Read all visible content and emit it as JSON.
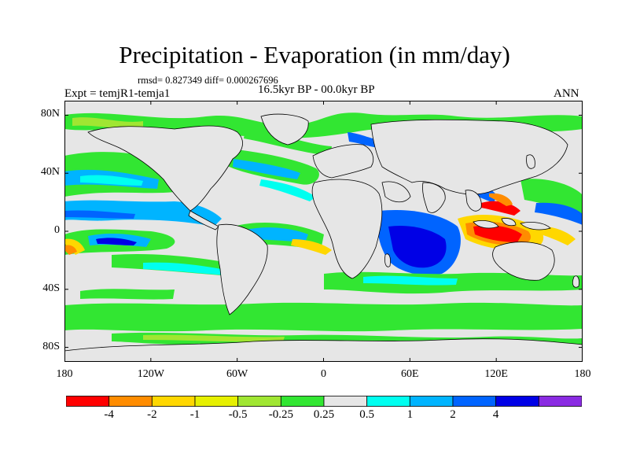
{
  "title": "Precipitation - Evaporation (in mm/day)",
  "stats": "rmsd= 0.827349 diff= 0.000267696",
  "experiment": "Expt = temjR1-temja1",
  "period": "16.5kyr BP - 00.0kyr BP",
  "season": "ANN",
  "lat_ticks": [
    {
      "label": "80N",
      "lat": 80
    },
    {
      "label": "40N",
      "lat": 40
    },
    {
      "label": "0",
      "lat": 0
    },
    {
      "label": "40S",
      "lat": -40
    },
    {
      "label": "80S",
      "lat": -80
    }
  ],
  "lon_ticks": [
    {
      "label": "180",
      "lon": -180
    },
    {
      "label": "120W",
      "lon": -120
    },
    {
      "label": "60W",
      "lon": -60
    },
    {
      "label": "0",
      "lon": 0
    },
    {
      "label": "60E",
      "lon": 60
    },
    {
      "label": "120E",
      "lon": 120
    },
    {
      "label": "180",
      "lon": 180
    }
  ],
  "map_extent": {
    "lon": [
      -180,
      180
    ],
    "lat": [
      -90,
      90
    ]
  },
  "colorbar": {
    "labels": [
      "-4",
      "-2",
      "-1",
      "-0.5",
      "-0.25",
      "0.25",
      "0.5",
      "1",
      "2",
      "4"
    ],
    "colors": [
      "#ff0000",
      "#ff8c00",
      "#ffd700",
      "#e6f000",
      "#a0e632",
      "#32e632",
      "#e6e6e6",
      "#00fff0",
      "#00b4ff",
      "#0064ff",
      "#0000e6",
      "#8a2be2"
    ]
  },
  "colors": {
    "background": "#e6e6e6",
    "coastline": "#000000"
  }
}
